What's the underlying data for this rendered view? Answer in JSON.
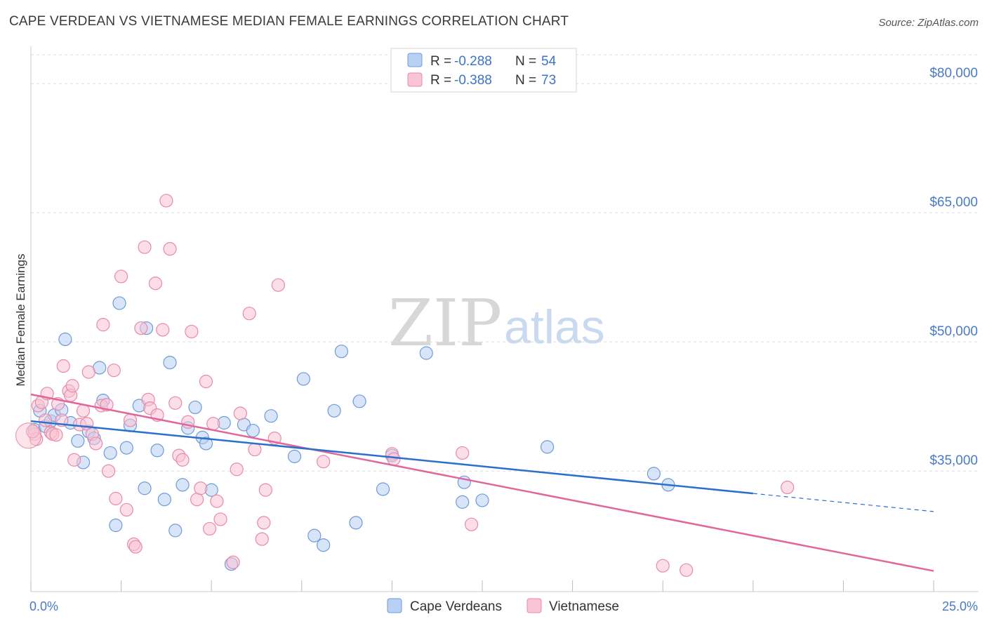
{
  "title": "CAPE VERDEAN VS VIETNAMESE MEDIAN FEMALE EARNINGS CORRELATION CHART",
  "source": "Source: ZipAtlas.com",
  "watermark": {
    "zip": "ZIP",
    "atlas": "atlas"
  },
  "colors": {
    "blue_fill": "#b8d0f2",
    "blue_stroke": "#6f9ad8",
    "blue_line": "#2a6fcc",
    "pink_fill": "#f8c3d3",
    "pink_stroke": "#e88aa8",
    "pink_line": "#e0679a",
    "grid": "#dddddd",
    "axis_text": "#4a7ac7"
  },
  "legend": {
    "rows": [
      {
        "r_label": "R = ",
        "r_value": "-0.288",
        "n_label": "N = ",
        "n_value": "54"
      },
      {
        "r_label": "R = ",
        "r_value": "-0.388",
        "n_label": "N = ",
        "n_value": "73"
      }
    ]
  },
  "chart_data": {
    "type": "scatter",
    "title": "CAPE VERDEAN VS VIETNAMESE MEDIAN FEMALE EARNINGS CORRELATION CHART",
    "xlabel": "",
    "ylabel": "Median Female Earnings",
    "xlim": [
      0,
      25
    ],
    "ylim": [
      21000,
      84000
    ],
    "x_tick_labels": [
      "0.0%",
      "25.0%"
    ],
    "y_ticks": [
      35000,
      50000,
      65000,
      80000
    ],
    "y_tick_labels": [
      "$35,000",
      "$50,000",
      "$65,000",
      "$80,000"
    ],
    "grid": "horizontal dashed",
    "legend_position": "top-center",
    "series": [
      {
        "name": "Cape Verdeans",
        "r": -0.288,
        "n": 54,
        "trend": {
          "x": [
            0,
            20
          ],
          "y": [
            40800,
            32400
          ],
          "dashed_extension_to_x": 25,
          "dashed_extension_y": 30300
        },
        "points": [
          [
            0.1,
            39800
          ],
          [
            0.25,
            42000
          ],
          [
            0.4,
            40200
          ],
          [
            0.55,
            40800
          ],
          [
            0.65,
            41500
          ],
          [
            0.85,
            42100
          ],
          [
            0.95,
            50300
          ],
          [
            1.1,
            40600
          ],
          [
            1.3,
            38500
          ],
          [
            1.45,
            36000
          ],
          [
            1.6,
            39600
          ],
          [
            1.75,
            38800
          ],
          [
            1.9,
            47000
          ],
          [
            2.0,
            43200
          ],
          [
            2.2,
            37100
          ],
          [
            2.35,
            28700
          ],
          [
            2.45,
            54500
          ],
          [
            2.65,
            37700
          ],
          [
            2.75,
            40300
          ],
          [
            3.0,
            42600
          ],
          [
            3.15,
            33000
          ],
          [
            3.2,
            51600
          ],
          [
            3.5,
            37400
          ],
          [
            3.7,
            31700
          ],
          [
            3.85,
            47600
          ],
          [
            4.0,
            28100
          ],
          [
            4.2,
            33400
          ],
          [
            4.35,
            40000
          ],
          [
            4.55,
            42400
          ],
          [
            4.75,
            38900
          ],
          [
            4.85,
            38200
          ],
          [
            5.0,
            32800
          ],
          [
            5.35,
            40600
          ],
          [
            5.55,
            24200
          ],
          [
            5.9,
            40400
          ],
          [
            6.15,
            39700
          ],
          [
            6.65,
            41400
          ],
          [
            7.3,
            36700
          ],
          [
            7.55,
            45700
          ],
          [
            7.85,
            27500
          ],
          [
            8.1,
            26400
          ],
          [
            8.4,
            42000
          ],
          [
            8.6,
            48900
          ],
          [
            9.0,
            29000
          ],
          [
            9.1,
            43100
          ],
          [
            9.75,
            32900
          ],
          [
            10.0,
            36800
          ],
          [
            10.95,
            48700
          ],
          [
            11.95,
            31400
          ],
          [
            12.0,
            33700
          ],
          [
            12.5,
            31600
          ],
          [
            14.3,
            37800
          ],
          [
            17.25,
            34700
          ],
          [
            17.65,
            33400
          ]
        ]
      },
      {
        "name": "Vietnamese",
        "r": -0.388,
        "n": 73,
        "trend": {
          "x": [
            0,
            25
          ],
          "y": [
            43900,
            23400
          ]
        },
        "points": [
          [
            0.1,
            39300
          ],
          [
            0.15,
            38700
          ],
          [
            0.2,
            42600
          ],
          [
            0.3,
            43000
          ],
          [
            0.4,
            40900
          ],
          [
            0.45,
            44000
          ],
          [
            0.55,
            39500
          ],
          [
            0.6,
            39300
          ],
          [
            0.7,
            39200
          ],
          [
            0.75,
            42800
          ],
          [
            0.85,
            40900
          ],
          [
            0.9,
            47200
          ],
          [
            1.05,
            44300
          ],
          [
            1.1,
            43800
          ],
          [
            1.15,
            44900
          ],
          [
            1.2,
            36300
          ],
          [
            1.35,
            40400
          ],
          [
            1.45,
            42000
          ],
          [
            1.55,
            40500
          ],
          [
            1.6,
            46500
          ],
          [
            1.7,
            39300
          ],
          [
            1.8,
            38200
          ],
          [
            1.95,
            42600
          ],
          [
            2.0,
            52000
          ],
          [
            2.1,
            42700
          ],
          [
            2.15,
            35000
          ],
          [
            2.3,
            46700
          ],
          [
            2.35,
            31800
          ],
          [
            2.5,
            57600
          ],
          [
            2.65,
            30500
          ],
          [
            2.75,
            40900
          ],
          [
            2.85,
            26500
          ],
          [
            2.9,
            26200
          ],
          [
            3.05,
            51600
          ],
          [
            3.15,
            61000
          ],
          [
            3.25,
            43300
          ],
          [
            3.3,
            42300
          ],
          [
            3.45,
            56800
          ],
          [
            3.5,
            41500
          ],
          [
            3.65,
            51400
          ],
          [
            3.75,
            66400
          ],
          [
            3.85,
            60800
          ],
          [
            4.0,
            42900
          ],
          [
            4.1,
            36800
          ],
          [
            4.2,
            36300
          ],
          [
            4.35,
            40700
          ],
          [
            4.45,
            51200
          ],
          [
            4.6,
            31700
          ],
          [
            4.7,
            33000
          ],
          [
            4.85,
            45400
          ],
          [
            4.95,
            28300
          ],
          [
            5.05,
            40500
          ],
          [
            5.15,
            31500
          ],
          [
            5.25,
            29400
          ],
          [
            5.6,
            24400
          ],
          [
            5.7,
            35200
          ],
          [
            5.8,
            41700
          ],
          [
            6.05,
            53300
          ],
          [
            6.2,
            37500
          ],
          [
            6.4,
            27100
          ],
          [
            6.45,
            29000
          ],
          [
            6.5,
            32800
          ],
          [
            6.75,
            38800
          ],
          [
            6.85,
            56600
          ],
          [
            8.1,
            36100
          ],
          [
            10.0,
            37000
          ],
          [
            10.05,
            36400
          ],
          [
            11.95,
            37100
          ],
          [
            12.2,
            28800
          ],
          [
            17.5,
            24000
          ],
          [
            18.15,
            23500
          ],
          [
            20.95,
            33100
          ],
          [
            0.05,
            39600
          ]
        ]
      }
    ]
  }
}
